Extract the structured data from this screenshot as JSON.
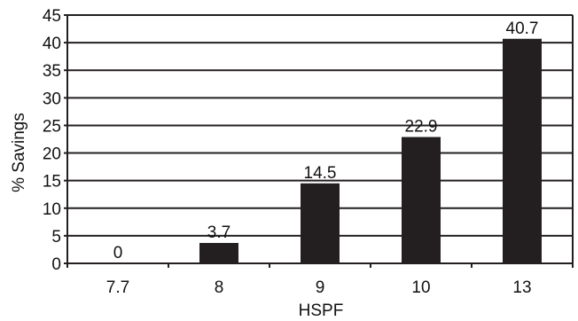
{
  "chart_data": {
    "type": "bar",
    "categories": [
      "7.7",
      "8",
      "9",
      "10",
      "13"
    ],
    "values": [
      0,
      3.7,
      14.5,
      22.9,
      40.7
    ],
    "data_labels": [
      "0",
      "3.7",
      "14.5",
      "22.9",
      "40.7"
    ],
    "xlabel": "HSPF",
    "ylabel": "% Savings",
    "ylim": [
      0,
      45
    ],
    "yticks": [
      0,
      5,
      10,
      15,
      20,
      25,
      30,
      35,
      40,
      45
    ],
    "ytick_labels": [
      "0",
      "5",
      "10",
      "15",
      "20",
      "25",
      "30",
      "35",
      "40",
      "45"
    ],
    "grid": true,
    "legend": "none",
    "bar_color": "#231f20",
    "grid_color": "#231f20"
  }
}
